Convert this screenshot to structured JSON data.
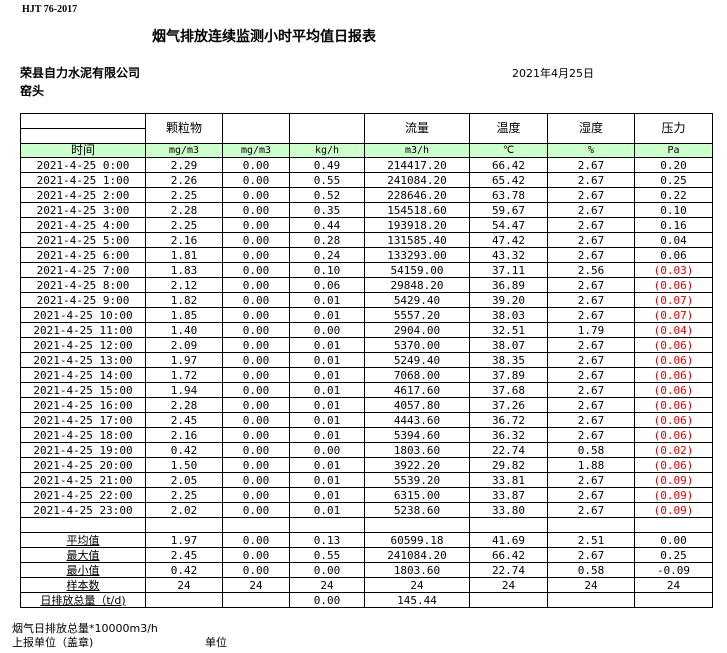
{
  "standard": "HJT  76-2017",
  "title": "烟气排放连续监测小时平均值日报表",
  "company": "荣县自力水泥有限公司",
  "location": "窑头",
  "date": "2021年4月25日",
  "colors": {
    "unit_row_bg": "#ccffcc",
    "negative_text": "#e00000"
  },
  "header": {
    "c1": "颗粒物",
    "c2": "",
    "c3": "",
    "c4": "流量",
    "c5": "温度",
    "c6": "湿度",
    "c7": "压力"
  },
  "units": [
    "时间",
    "mg/m3",
    "mg/m3",
    "kg/h",
    "m3/h",
    "℃",
    "%",
    "Pa"
  ],
  "rows": [
    [
      "2021-4-25 0:00",
      "2.29",
      "0.00",
      "0.49",
      "214417.20",
      "66.42",
      "2.67",
      "0.20"
    ],
    [
      "2021-4-25 1:00",
      "2.26",
      "0.00",
      "0.55",
      "241084.20",
      "65.42",
      "2.67",
      "0.25"
    ],
    [
      "2021-4-25 2:00",
      "2.25",
      "0.00",
      "0.52",
      "228646.20",
      "63.78",
      "2.67",
      "0.22"
    ],
    [
      "2021-4-25 3:00",
      "2.28",
      "0.00",
      "0.35",
      "154518.60",
      "59.67",
      "2.67",
      "0.10"
    ],
    [
      "2021-4-25 4:00",
      "2.25",
      "0.00",
      "0.44",
      "193918.20",
      "54.47",
      "2.67",
      "0.16"
    ],
    [
      "2021-4-25 5:00",
      "2.16",
      "0.00",
      "0.28",
      "131585.40",
      "47.42",
      "2.67",
      "0.04"
    ],
    [
      "2021-4-25 6:00",
      "1.81",
      "0.00",
      "0.24",
      "133293.00",
      "43.32",
      "2.67",
      "0.06"
    ],
    [
      "2021-4-25 7:00",
      "1.83",
      "0.00",
      "0.10",
      "54159.00",
      "37.11",
      "2.56",
      "(0.03)"
    ],
    [
      "2021-4-25 8:00",
      "2.12",
      "0.00",
      "0.06",
      "29848.20",
      "36.89",
      "2.67",
      "(0.06)"
    ],
    [
      "2021-4-25 9:00",
      "1.82",
      "0.00",
      "0.01",
      "5429.40",
      "39.20",
      "2.67",
      "(0.07)"
    ],
    [
      "2021-4-25 10:00",
      "1.85",
      "0.00",
      "0.01",
      "5557.20",
      "38.03",
      "2.67",
      "(0.07)"
    ],
    [
      "2021-4-25 11:00",
      "1.40",
      "0.00",
      "0.00",
      "2904.00",
      "32.51",
      "1.79",
      "(0.04)"
    ],
    [
      "2021-4-25 12:00",
      "2.09",
      "0.00",
      "0.01",
      "5370.00",
      "38.07",
      "2.67",
      "(0.06)"
    ],
    [
      "2021-4-25 13:00",
      "1.97",
      "0.00",
      "0.01",
      "5249.40",
      "38.35",
      "2.67",
      "(0.06)"
    ],
    [
      "2021-4-25 14:00",
      "1.72",
      "0.00",
      "0.01",
      "7068.00",
      "37.89",
      "2.67",
      "(0.06)"
    ],
    [
      "2021-4-25 15:00",
      "1.94",
      "0.00",
      "0.01",
      "4617.60",
      "37.68",
      "2.67",
      "(0.06)"
    ],
    [
      "2021-4-25 16:00",
      "2.28",
      "0.00",
      "0.01",
      "4057.80",
      "37.26",
      "2.67",
      "(0.06)"
    ],
    [
      "2021-4-25 17:00",
      "2.45",
      "0.00",
      "0.01",
      "4443.60",
      "36.72",
      "2.67",
      "(0.06)"
    ],
    [
      "2021-4-25 18:00",
      "2.16",
      "0.00",
      "0.01",
      "5394.60",
      "36.32",
      "2.67",
      "(0.06)"
    ],
    [
      "2021-4-25 19:00",
      "0.42",
      "0.00",
      "0.00",
      "1803.60",
      "22.74",
      "0.58",
      "(0.02)"
    ],
    [
      "2021-4-25 20:00",
      "1.50",
      "0.00",
      "0.01",
      "3922.20",
      "29.82",
      "1.88",
      "(0.06)"
    ],
    [
      "2021-4-25 21:00",
      "2.05",
      "0.00",
      "0.01",
      "5539.20",
      "33.81",
      "2.67",
      "(0.09)"
    ],
    [
      "2021-4-25 22:00",
      "2.25",
      "0.00",
      "0.01",
      "6315.00",
      "33.87",
      "2.67",
      "(0.09)"
    ],
    [
      "2021-4-25 23:00",
      "2.02",
      "0.00",
      "0.01",
      "5238.60",
      "33.80",
      "2.67",
      "(0.09)"
    ]
  ],
  "summary": [
    [
      "平均值",
      "1.97",
      "0.00",
      "0.13",
      "60599.18",
      "41.69",
      "2.51",
      "0.00"
    ],
    [
      "最大值",
      "2.45",
      "0.00",
      "0.55",
      "241084.20",
      "66.42",
      "2.67",
      "0.25"
    ],
    [
      "最小值",
      "0.42",
      "0.00",
      "0.00",
      "1803.60",
      "22.74",
      "0.58",
      "-0.09"
    ],
    [
      "样本数",
      "24",
      "24",
      "24",
      "24",
      "24",
      "24",
      "24"
    ],
    [
      "日排放总量（t/d)",
      "",
      "",
      "0.00",
      "145.44",
      "",
      "",
      ""
    ]
  ],
  "footer": {
    "line1": "烟气日排放总量*10000m3/h",
    "line2": "上报单位（盖章)",
    "line3": "单位"
  }
}
